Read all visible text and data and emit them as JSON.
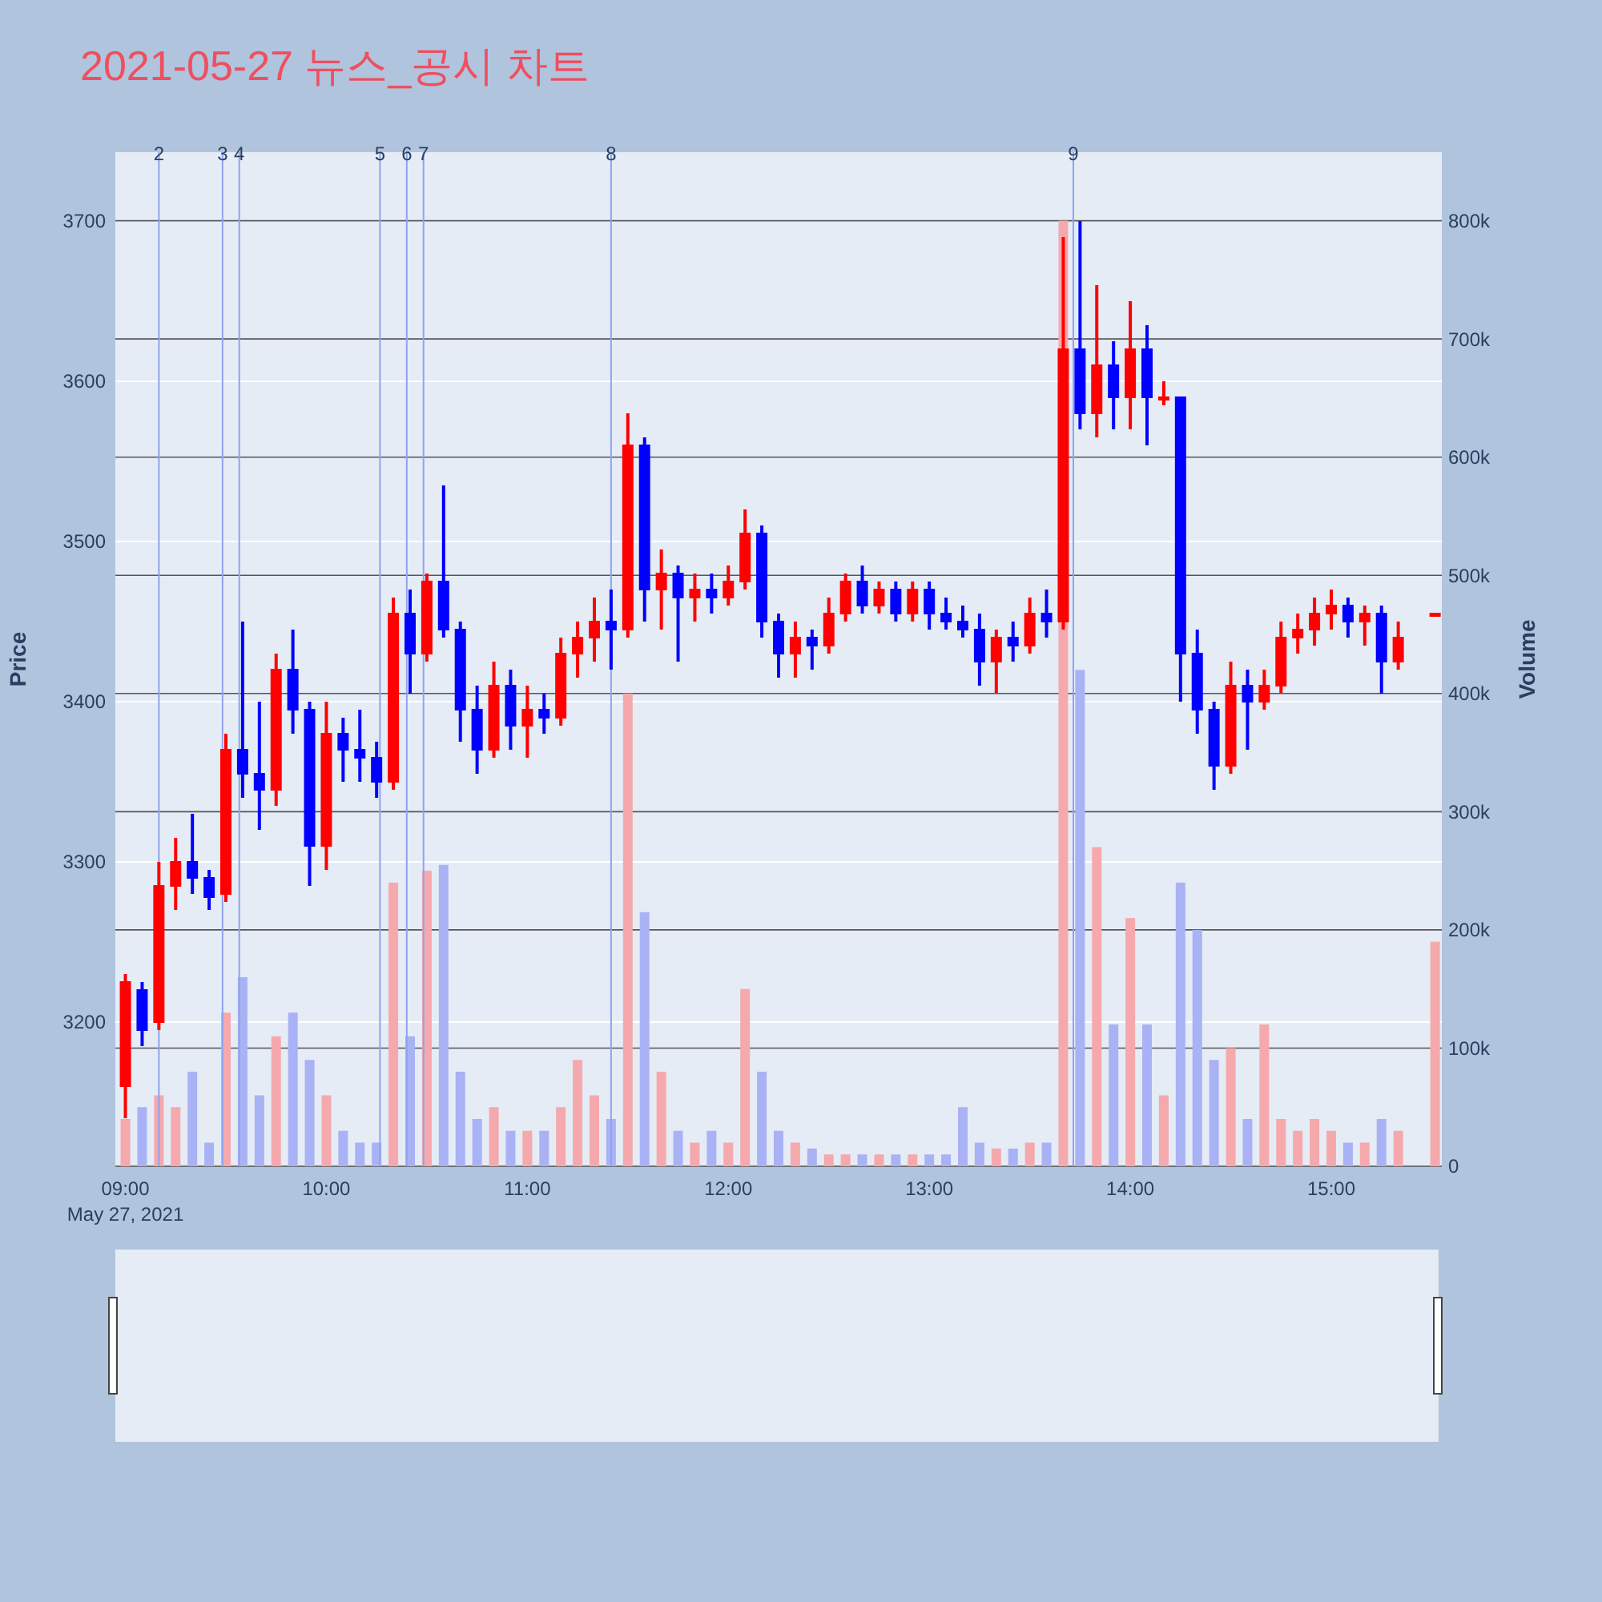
{
  "chart_data": {
    "type": "candlestick",
    "title": "2021-05-27 뉴스_공시 차트",
    "ylabel": "Price",
    "y2label": "Volume",
    "annotations": [
      "May 27, 2021"
    ],
    "x": [
      "2021-05-27T09:00",
      "2021-05-27T09:05",
      "2021-05-27T09:10",
      "2021-05-27T09:15",
      "2021-05-27T09:20",
      "2021-05-27T09:25",
      "2021-05-27T09:30",
      "2021-05-27T09:35",
      "2021-05-27T09:40",
      "2021-05-27T09:45",
      "2021-05-27T09:50",
      "2021-05-27T09:55",
      "2021-05-27T10:00",
      "2021-05-27T10:05",
      "2021-05-27T10:10",
      "2021-05-27T10:15",
      "2021-05-27T10:20",
      "2021-05-27T10:25",
      "2021-05-27T10:30",
      "2021-05-27T10:35",
      "2021-05-27T10:40",
      "2021-05-27T10:45",
      "2021-05-27T10:50",
      "2021-05-27T10:55",
      "2021-05-27T11:00",
      "2021-05-27T11:05",
      "2021-05-27T11:10",
      "2021-05-27T11:15",
      "2021-05-27T11:20",
      "2021-05-27T11:25",
      "2021-05-27T11:30",
      "2021-05-27T11:35",
      "2021-05-27T11:40",
      "2021-05-27T11:45",
      "2021-05-27T11:50",
      "2021-05-27T11:55",
      "2021-05-27T12:00",
      "2021-05-27T12:05",
      "2021-05-27T12:10",
      "2021-05-27T12:15",
      "2021-05-27T12:20",
      "2021-05-27T12:25",
      "2021-05-27T12:30",
      "2021-05-27T12:35",
      "2021-05-27T12:40",
      "2021-05-27T12:45",
      "2021-05-27T12:50",
      "2021-05-27T12:55",
      "2021-05-27T13:00",
      "2021-05-27T13:05",
      "2021-05-27T13:10",
      "2021-05-27T13:15",
      "2021-05-27T13:20",
      "2021-05-27T13:25",
      "2021-05-27T13:30",
      "2021-05-27T13:35",
      "2021-05-27T13:40",
      "2021-05-27T13:45",
      "2021-05-27T13:50",
      "2021-05-27T13:55",
      "2021-05-27T14:00",
      "2021-05-27T14:05",
      "2021-05-27T14:10",
      "2021-05-27T14:15",
      "2021-05-27T14:20",
      "2021-05-27T14:25",
      "2021-05-27T14:30",
      "2021-05-27T14:35",
      "2021-05-27T14:40",
      "2021-05-27T14:45",
      "2021-05-27T14:50",
      "2021-05-27T14:55",
      "2021-05-27T15:00",
      "2021-05-27T15:05",
      "2021-05-27T15:10",
      "2021-05-27T15:15",
      "2021-05-27T15:20",
      "2021-05-27T15:31"
    ],
    "ohlc": [
      [
        3160,
        3230,
        3140,
        3225
      ],
      [
        3220,
        3225,
        3185,
        3195
      ],
      [
        3200,
        3300,
        3195,
        3285
      ],
      [
        3285,
        3315,
        3270,
        3300
      ],
      [
        3300,
        3330,
        3280,
        3290
      ],
      [
        3290,
        3295,
        3270,
        3278
      ],
      [
        3280,
        3380,
        3275,
        3370
      ],
      [
        3370,
        3450,
        3340,
        3355
      ],
      [
        3355,
        3400,
        3320,
        3345
      ],
      [
        3345,
        3430,
        3335,
        3420
      ],
      [
        3420,
        3445,
        3380,
        3395
      ],
      [
        3395,
        3400,
        3285,
        3310
      ],
      [
        3310,
        3400,
        3295,
        3380
      ],
      [
        3380,
        3390,
        3350,
        3370
      ],
      [
        3370,
        3395,
        3350,
        3365
      ],
      [
        3365,
        3375,
        3340,
        3350
      ],
      [
        3350,
        3465,
        3345,
        3455
      ],
      [
        3455,
        3470,
        3405,
        3430
      ],
      [
        3430,
        3480,
        3425,
        3475
      ],
      [
        3475,
        3535,
        3440,
        3445
      ],
      [
        3445,
        3450,
        3375,
        3395
      ],
      [
        3395,
        3410,
        3355,
        3370
      ],
      [
        3370,
        3425,
        3365,
        3410
      ],
      [
        3410,
        3420,
        3370,
        3385
      ],
      [
        3385,
        3410,
        3365,
        3395
      ],
      [
        3395,
        3405,
        3380,
        3390
      ],
      [
        3390,
        3440,
        3385,
        3430
      ],
      [
        3430,
        3450,
        3415,
        3440
      ],
      [
        3440,
        3465,
        3425,
        3450
      ],
      [
        3450,
        3470,
        3420,
        3445
      ],
      [
        3445,
        3580,
        3440,
        3560
      ],
      [
        3560,
        3565,
        3450,
        3470
      ],
      [
        3470,
        3495,
        3445,
        3480
      ],
      [
        3480,
        3485,
        3425,
        3465
      ],
      [
        3465,
        3480,
        3450,
        3470
      ],
      [
        3470,
        3480,
        3455,
        3465
      ],
      [
        3465,
        3485,
        3460,
        3475
      ],
      [
        3475,
        3520,
        3470,
        3505
      ],
      [
        3505,
        3510,
        3440,
        3450
      ],
      [
        3450,
        3455,
        3415,
        3430
      ],
      [
        3430,
        3450,
        3415,
        3440
      ],
      [
        3440,
        3445,
        3420,
        3435
      ],
      [
        3435,
        3465,
        3430,
        3455
      ],
      [
        3455,
        3480,
        3450,
        3475
      ],
      [
        3475,
        3485,
        3455,
        3460
      ],
      [
        3460,
        3475,
        3455,
        3470
      ],
      [
        3470,
        3475,
        3450,
        3455
      ],
      [
        3455,
        3475,
        3450,
        3470
      ],
      [
        3470,
        3475,
        3445,
        3455
      ],
      [
        3455,
        3465,
        3445,
        3450
      ],
      [
        3450,
        3460,
        3440,
        3445
      ],
      [
        3445,
        3455,
        3410,
        3425
      ],
      [
        3425,
        3445,
        3405,
        3440
      ],
      [
        3440,
        3450,
        3425,
        3435
      ],
      [
        3435,
        3465,
        3430,
        3455
      ],
      [
        3455,
        3470,
        3440,
        3450
      ],
      [
        3450,
        3690,
        3445,
        3620
      ],
      [
        3620,
        3700,
        3570,
        3580
      ],
      [
        3580,
        3660,
        3565,
        3610
      ],
      [
        3610,
        3625,
        3570,
        3590
      ],
      [
        3590,
        3650,
        3570,
        3620
      ],
      [
        3620,
        3635,
        3560,
        3590
      ],
      [
        3590,
        3600,
        3585,
        3590
      ],
      [
        3590,
        3590,
        3400,
        3430
      ],
      [
        3430,
        3445,
        3380,
        3395
      ],
      [
        3395,
        3400,
        3345,
        3360
      ],
      [
        3360,
        3425,
        3355,
        3410
      ],
      [
        3410,
        3420,
        3370,
        3400
      ],
      [
        3400,
        3420,
        3395,
        3410
      ],
      [
        3410,
        3450,
        3405,
        3440
      ],
      [
        3440,
        3455,
        3430,
        3445
      ],
      [
        3445,
        3465,
        3435,
        3455
      ],
      [
        3455,
        3470,
        3445,
        3460
      ],
      [
        3460,
        3465,
        3440,
        3450
      ],
      [
        3450,
        3460,
        3435,
        3455
      ],
      [
        3455,
        3460,
        3405,
        3425
      ],
      [
        3425,
        3450,
        3420,
        3440
      ],
      [
        3455,
        3455,
        3455,
        3455
      ]
    ],
    "colors": [
      "#ff0000",
      "#0000ff",
      "#ff0000",
      "#ff0000",
      "#0000ff",
      "#0000ff",
      "#ff0000",
      "#0000ff",
      "#0000ff",
      "#ff0000",
      "#0000ff",
      "#0000ff",
      "#ff0000",
      "#0000ff",
      "#0000ff",
      "#0000ff",
      "#ff0000",
      "#0000ff",
      "#ff0000",
      "#0000ff",
      "#0000ff",
      "#0000ff",
      "#ff0000",
      "#0000ff",
      "#ff0000",
      "#0000ff",
      "#ff0000",
      "#ff0000",
      "#ff0000",
      "#0000ff",
      "#ff0000",
      "#0000ff",
      "#ff0000",
      "#0000ff",
      "#ff0000",
      "#0000ff",
      "#ff0000",
      "#ff0000",
      "#0000ff",
      "#0000ff",
      "#ff0000",
      "#0000ff",
      "#ff0000",
      "#ff0000",
      "#0000ff",
      "#ff0000",
      "#0000ff",
      "#ff0000",
      "#0000ff",
      "#0000ff",
      "#0000ff",
      "#0000ff",
      "#ff0000",
      "#0000ff",
      "#ff0000",
      "#0000ff",
      "#ff0000",
      "#0000ff",
      "#ff0000",
      "#0000ff",
      "#ff0000",
      "#0000ff",
      "#ff0000",
      "#0000ff",
      "#0000ff",
      "#0000ff",
      "#ff0000",
      "#0000ff",
      "#ff0000",
      "#ff0000",
      "#ff0000",
      "#ff0000",
      "#ff0000",
      "#0000ff",
      "#ff0000",
      "#0000ff",
      "#ff0000",
      "#ff0000"
    ],
    "series": [
      {
        "type": "bar",
        "axis": "y2",
        "values": [
          40000,
          50000,
          60000,
          50000,
          80000,
          20000,
          130000,
          160000,
          60000,
          110000,
          130000,
          90000,
          60000,
          30000,
          20000,
          20000,
          240000,
          110000,
          250000,
          255000,
          80000,
          40000,
          50000,
          30000,
          30000,
          30000,
          50000,
          90000,
          60000,
          40000,
          400000,
          215000,
          80000,
          30000,
          20000,
          30000,
          20000,
          150000,
          80000,
          30000,
          20000,
          15000,
          10000,
          10000,
          10000,
          10000,
          10000,
          10000,
          10000,
          10000,
          50000,
          20000,
          15000,
          15000,
          20000,
          20000,
          800000,
          420000,
          270000,
          120000,
          210000,
          120000,
          60000,
          240000,
          200000,
          90000,
          100000,
          40000,
          120000,
          40000,
          30000,
          40000,
          30000,
          20000,
          20000,
          40000,
          30000,
          190000
        ],
        "colors": [
          "#f5a9ad",
          "#a9b2f5",
          "#f5a9ad",
          "#f5a9ad",
          "#a9b2f5",
          "#a9b2f5",
          "#f5a9ad",
          "#a9b2f5",
          "#a9b2f5",
          "#f5a9ad",
          "#a9b2f5",
          "#a9b2f5",
          "#f5a9ad",
          "#a9b2f5",
          "#a9b2f5",
          "#a9b2f5",
          "#f5a9ad",
          "#a9b2f5",
          "#f5a9ad",
          "#a9b2f5",
          "#a9b2f5",
          "#a9b2f5",
          "#f5a9ad",
          "#a9b2f5",
          "#f5a9ad",
          "#a9b2f5",
          "#f5a9ad",
          "#f5a9ad",
          "#f5a9ad",
          "#a9b2f5",
          "#f5a9ad",
          "#a9b2f5",
          "#f5a9ad",
          "#a9b2f5",
          "#f5a9ad",
          "#a9b2f5",
          "#f5a9ad",
          "#f5a9ad",
          "#a9b2f5",
          "#a9b2f5",
          "#f5a9ad",
          "#a9b2f5",
          "#f5a9ad",
          "#f5a9ad",
          "#a9b2f5",
          "#f5a9ad",
          "#a9b2f5",
          "#f5a9ad",
          "#a9b2f5",
          "#a9b2f5",
          "#a9b2f5",
          "#a9b2f5",
          "#f5a9ad",
          "#a9b2f5",
          "#f5a9ad",
          "#a9b2f5",
          "#f5a9ad",
          "#a9b2f5",
          "#f5a9ad",
          "#a9b2f5",
          "#f5a9ad",
          "#a9b2f5",
          "#f5a9ad",
          "#a9b2f5",
          "#a9b2f5",
          "#a9b2f5",
          "#f5a9ad",
          "#a9b2f5",
          "#f5a9ad",
          "#f5a9ad",
          "#f5a9ad",
          "#f5a9ad",
          "#f5a9ad",
          "#a9b2f5",
          "#f5a9ad",
          "#a9b2f5",
          "#f5a9ad",
          "#f5a9ad"
        ]
      }
    ],
    "xlim": [
      "2021-05-27T08:57",
      "2021-05-27T15:33"
    ],
    "xticks": [
      {
        "value": "2021-05-27T09:00",
        "label": "09:00"
      },
      {
        "value": "2021-05-27T10:00",
        "label": "10:00"
      },
      {
        "value": "2021-05-27T11:00",
        "label": "11:00"
      },
      {
        "value": "2021-05-27T12:00",
        "label": "12:00"
      },
      {
        "value": "2021-05-27T13:00",
        "label": "13:00"
      },
      {
        "value": "2021-05-27T14:00",
        "label": "14:00"
      },
      {
        "value": "2021-05-27T15:00",
        "label": "15:00"
      }
    ],
    "ylim": [
      3110,
      3743
    ],
    "yticks": [
      3200,
      3300,
      3400,
      3500,
      3600,
      3700
    ],
    "y2lim": [
      0,
      858000
    ],
    "y2ticks": [
      0,
      {
        "value": 100000,
        "label": "100k"
      },
      {
        "value": 200000,
        "label": "200k"
      },
      {
        "value": 300000,
        "label": "300k"
      },
      {
        "value": 400000,
        "label": "400k"
      },
      {
        "value": 500000,
        "label": "500k"
      },
      {
        "value": 600000,
        "label": "600k"
      },
      {
        "value": 700000,
        "label": "700k"
      },
      {
        "value": 800000,
        "label": "800k"
      }
    ],
    "grid": true,
    "ref_lines": [
      {
        "axis": "x",
        "value": "2021-05-27T09:10",
        "label": "2",
        "color": "#8fa3f0"
      },
      {
        "axis": "x",
        "value": "2021-05-27T09:29",
        "label": "3",
        "color": "#8fa3f0"
      },
      {
        "axis": "x",
        "value": "2021-05-27T09:34",
        "label": "4",
        "color": "#8fa3f0"
      },
      {
        "axis": "x",
        "value": "2021-05-27T10:16",
        "label": "5",
        "color": "#8fa3f0"
      },
      {
        "axis": "x",
        "value": "2021-05-27T10:24",
        "label": "6",
        "color": "#8fa3f0"
      },
      {
        "axis": "x",
        "value": "2021-05-27T10:29",
        "label": "7",
        "color": "#8fa3f0"
      },
      {
        "axis": "x",
        "value": "2021-05-27T11:25",
        "label": "8",
        "color": "#8fa3f0"
      },
      {
        "axis": "x",
        "value": "2021-05-27T13:43",
        "label": "9",
        "color": "#8fa3f0"
      }
    ]
  }
}
